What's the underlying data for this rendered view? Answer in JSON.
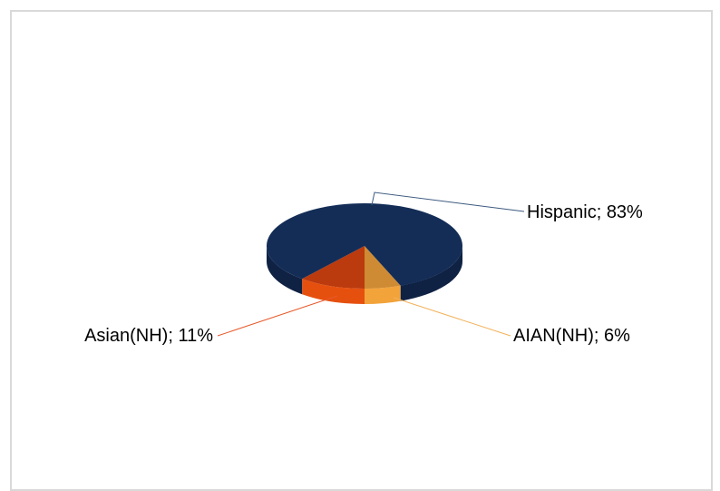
{
  "chart_data": {
    "type": "pie",
    "title": "",
    "slices": [
      {
        "label": "Hispanic",
        "value": 83,
        "display": "Hispanic; 83%",
        "color": "#142d57",
        "side": "#0f2244"
      },
      {
        "label": "AIAN(NH)",
        "value": 6,
        "display": "AIAN(NH); 6%",
        "color": "#cf8b33",
        "side": "#f2a33a"
      },
      {
        "label": "Asian(NH)",
        "value": 11,
        "display": "Asian(NH); 11%",
        "color": "#bb3a0e",
        "side": "#e6500f"
      }
    ],
    "leader_colors": {
      "Hispanic": "#3c5a80",
      "AIAN(NH)": "#f2b25b",
      "Asian(NH)": "#e85a2a"
    },
    "legend": "none",
    "style": "3d-pie"
  }
}
